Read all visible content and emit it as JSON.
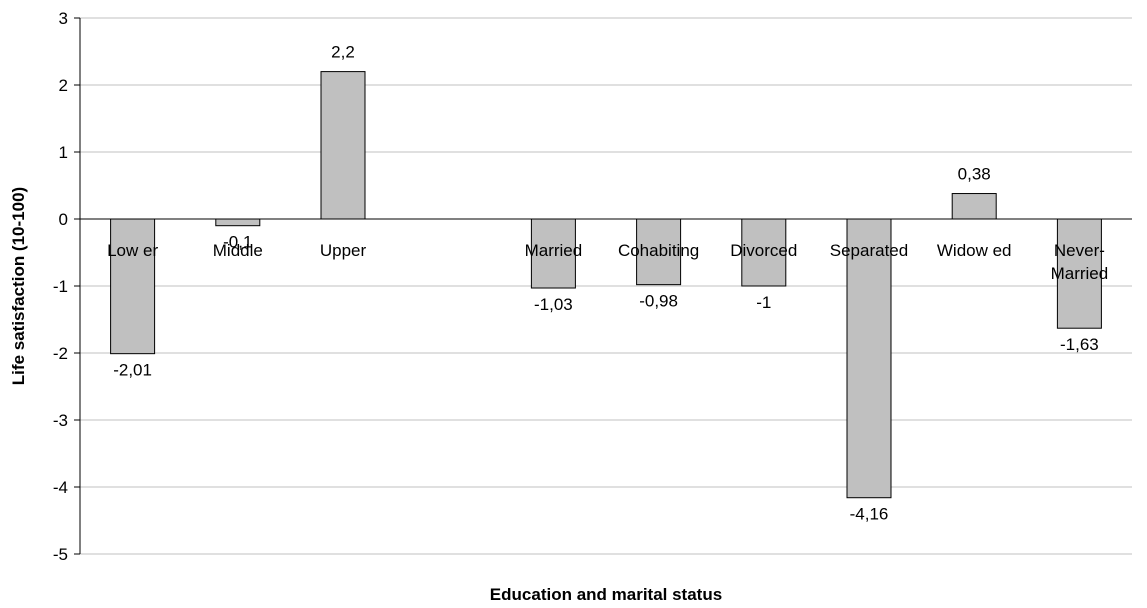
{
  "chart_data": {
    "type": "bar",
    "title": "",
    "xlabel": "Education and marital status",
    "ylabel": "Life satisfaction (10-100)",
    "ylim": [
      -5,
      3
    ],
    "yticks": [
      "3",
      "2",
      "1",
      "0",
      "-1",
      "-2",
      "-3",
      "-4",
      "-5"
    ],
    "grid": true,
    "legend": "none",
    "bar_color": "#c0c0c0",
    "bar_stroke": "#000000",
    "grid_color": "#c0c0c0",
    "categories": [
      {
        "label": [
          "Low er"
        ],
        "value": 2.01,
        "sign": -1,
        "value_label": "-2,01"
      },
      {
        "label": [
          "Middle"
        ],
        "value": 0.1,
        "sign": -1,
        "value_label": "-0,1"
      },
      {
        "label": [
          "Upper"
        ],
        "value": 2.2,
        "sign": 1,
        "value_label": "2,2"
      },
      {
        "label": [
          ""
        ],
        "value": null,
        "sign": 0,
        "value_label": ""
      },
      {
        "label": [
          "Married"
        ],
        "value": 1.03,
        "sign": -1,
        "value_label": "-1,03"
      },
      {
        "label": [
          "Cohabiting"
        ],
        "value": 0.98,
        "sign": -1,
        "value_label": "-0,98"
      },
      {
        "label": [
          "Divorced"
        ],
        "value": 1,
        "sign": -1,
        "value_label": "-1"
      },
      {
        "label": [
          "Separated"
        ],
        "value": 4.16,
        "sign": -1,
        "value_label": "-4,16"
      },
      {
        "label": [
          "Widow ed"
        ],
        "value": 0.38,
        "sign": 1,
        "value_label": "0,38"
      },
      {
        "label": [
          "Never-",
          "Married"
        ],
        "value": 1.63,
        "sign": -1,
        "value_label": "-1,63"
      }
    ]
  }
}
